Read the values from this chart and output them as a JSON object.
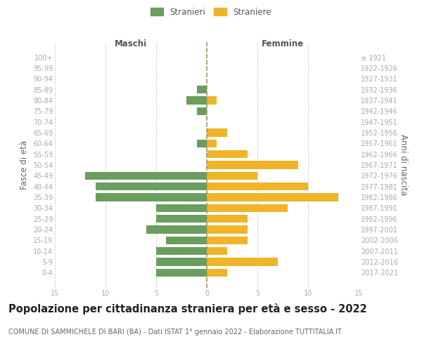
{
  "age_groups": [
    "100+",
    "95-99",
    "90-94",
    "85-89",
    "80-84",
    "75-79",
    "70-74",
    "65-69",
    "60-64",
    "55-59",
    "50-54",
    "45-49",
    "40-44",
    "35-39",
    "30-34",
    "25-29",
    "20-24",
    "15-19",
    "10-14",
    "5-9",
    "0-4"
  ],
  "birth_years": [
    "≤ 1921",
    "1922-1926",
    "1927-1931",
    "1932-1936",
    "1937-1941",
    "1942-1946",
    "1947-1951",
    "1952-1956",
    "1957-1961",
    "1962-1966",
    "1967-1971",
    "1972-1976",
    "1977-1981",
    "1982-1986",
    "1987-1991",
    "1992-1996",
    "1997-2001",
    "2002-2006",
    "2007-2011",
    "2012-2016",
    "2017-2021"
  ],
  "males": [
    0,
    0,
    0,
    1,
    2,
    1,
    0,
    0,
    1,
    0,
    0,
    12,
    11,
    11,
    5,
    5,
    6,
    4,
    5,
    5,
    5
  ],
  "females": [
    0,
    0,
    0,
    0,
    1,
    0,
    0,
    2,
    1,
    4,
    9,
    5,
    10,
    13,
    8,
    4,
    4,
    4,
    2,
    7,
    2
  ],
  "male_color": "#6a9e5f",
  "female_color": "#f0b429",
  "xlim": 15,
  "title": "Popolazione per cittadinanza straniera per età e sesso - 2022",
  "subtitle": "COMUNE DI SAMMICHELE DI BARI (BA) - Dati ISTAT 1° gennaio 2022 - Elaborazione TUTTITALIA.IT",
  "legend_male": "Stranieri",
  "legend_female": "Straniere",
  "ylabel_left": "Fasce di età",
  "ylabel_right": "Anni di nascita",
  "xlabel_left": "Maschi",
  "xlabel_right": "Femmine",
  "background_color": "#ffffff",
  "grid_color": "#cccccc",
  "tick_color": "#aaaaaa",
  "title_fontsize": 10.5,
  "subtitle_fontsize": 7.0,
  "label_fontsize": 8.5,
  "tick_fontsize": 7.0,
  "bar_height": 0.75
}
